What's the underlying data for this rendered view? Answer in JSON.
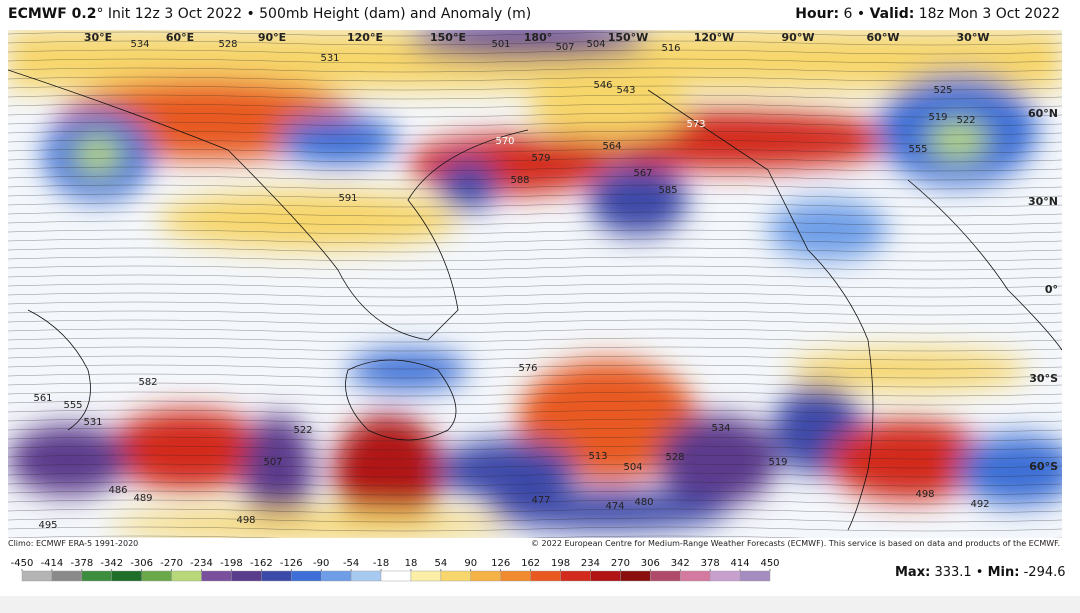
{
  "header": {
    "model": "ECMWF 0.2",
    "degree": "°",
    "description": "Init 12z 3 Oct 2022 • 500mb Height (dam) and Anomaly (m)",
    "hour_label": "Hour:",
    "hour": "6 •",
    "valid_label": "Valid:",
    "valid": "18z Mon 3 Oct 2022"
  },
  "map": {
    "longitude_labels": [
      "30°E",
      "60°E",
      "90°E",
      "120°E",
      "150°E",
      "180°",
      "150°W",
      "120°W",
      "90°W",
      "60°W",
      "30°W"
    ],
    "latitude_labels": [
      "60°N",
      "30°N",
      "0°",
      "30°S",
      "60°S"
    ],
    "contour_labels": [
      "534",
      "528",
      "531",
      "570",
      "579",
      "573",
      "543",
      "546",
      "567",
      "564",
      "588",
      "591",
      "585",
      "525",
      "519",
      "522",
      "555",
      "516",
      "501",
      "507",
      "504",
      "576",
      "582",
      "561",
      "531",
      "555",
      "522",
      "507",
      "489",
      "498",
      "486",
      "513",
      "504",
      "474",
      "480",
      "477",
      "528",
      "534",
      "519",
      "498",
      "492",
      "495"
    ]
  },
  "footer": {
    "climo": "Climo: ECMWF ERA-5 1991-2020",
    "copyright": "© 2022 European Centre for Medium-Range Weather Forecasts (ECMWF). This service is based on data and products of the ECMWF.",
    "max_label": "Max:",
    "max": "333.1",
    "separator": "•",
    "min_label": "Min:",
    "min": "-294.6"
  },
  "colorbar": {
    "ticks": [
      -450,
      -414,
      -378,
      -342,
      -306,
      -270,
      -234,
      -198,
      -162,
      -126,
      -90,
      -54,
      -18,
      18,
      54,
      90,
      126,
      162,
      198,
      234,
      270,
      306,
      342,
      378,
      414,
      450
    ],
    "colors": [
      "#b4b4b4",
      "#8a8a8a",
      "#3e8c3e",
      "#1f6e2a",
      "#6ba84a",
      "#b6d77a",
      "#7a4f9e",
      "#5b3b8c",
      "#3c4aa8",
      "#3d6fd6",
      "#6e9ee8",
      "#a8c9f0",
      "#ffffff",
      "#fbefa8",
      "#f7d66b",
      "#f5b246",
      "#f08a2e",
      "#e85a22",
      "#d32a1e",
      "#b01414",
      "#8a1010",
      "#b04a6a",
      "#d47aa0",
      "#c8a0d0",
      "#a48cc0"
    ]
  }
}
